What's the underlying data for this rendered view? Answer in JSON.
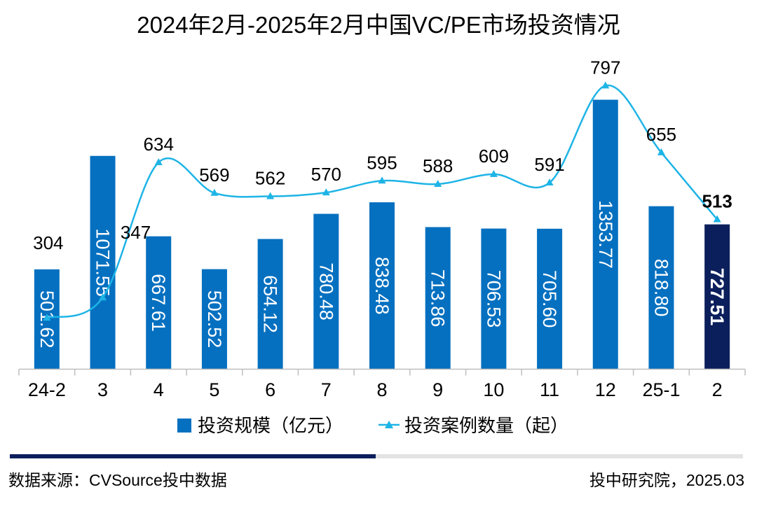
{
  "chart_data": {
    "type": "bar",
    "title": "2024年2月-2025年2月中国VC/PE市场投资情况",
    "categories": [
      "24-2",
      "3",
      "4",
      "5",
      "6",
      "7",
      "8",
      "9",
      "10",
      "11",
      "12",
      "25-1",
      "2"
    ],
    "series": [
      {
        "name": "投资规模（亿元）",
        "type": "bar",
        "values": [
          501.62,
          1071.55,
          667.61,
          502.52,
          654.12,
          780.48,
          838.48,
          713.86,
          706.53,
          705.6,
          1353.77,
          818.8,
          727.51
        ],
        "labels": [
          "501.62",
          "1071.55",
          "667.61",
          "502.52",
          "654.12",
          "780.48",
          "838.48",
          "713.86",
          "706.53",
          "705.60",
          "1353.77",
          "818.80",
          "727.51"
        ],
        "color": "#0570C0",
        "highlight_color": "#0B1F5C",
        "highlight_index": 12
      },
      {
        "name": "投资案例数量（起）",
        "type": "line",
        "marker": "triangle",
        "values": [
          304,
          347,
          634,
          569,
          562,
          570,
          595,
          588,
          609,
          591,
          797,
          655,
          513
        ],
        "labels": [
          "304",
          "347",
          "634",
          "569",
          "562",
          "570",
          "595",
          "588",
          "609",
          "591",
          "797",
          "655",
          "513"
        ],
        "color": "#1EB4E6"
      }
    ],
    "legend": "bottom",
    "grid": false
  },
  "footer": {
    "source": "数据来源：CVSource投中数据",
    "credit": "投中研究院，2025.03"
  },
  "colors": {
    "progress_dark": "#0B1F5C",
    "progress_light": "#E3E3E3"
  }
}
